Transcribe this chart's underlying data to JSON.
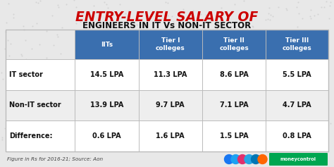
{
  "title_line1": "ENTRY-LEVEL SALARY OF",
  "title_line2": "ENGINEERS IN IT Vs NON-IT SECTOR",
  "title_line1_color": "#cc0000",
  "title_line2_color": "#111111",
  "header_bg_color": "#3a6faf",
  "header_text_color": "#ffffff",
  "col_headers": [
    "IITs",
    "Tier I\ncolleges",
    "Tier II\ncolleges",
    "Tier III\ncolleges"
  ],
  "row_labels": [
    "IT sector",
    "Non-IT sector",
    "Difference:"
  ],
  "table_data": [
    [
      "14.5 LPA",
      "11.3 LPA",
      "8.6 LPA",
      "5.5 LPA"
    ],
    [
      "13.9 LPA",
      "9.7 LPA",
      "7.1 LPA",
      "4.7 LPA"
    ],
    [
      "0.6 LPA",
      "1.6 LPA",
      "1.5 LPA",
      "0.8 LPA"
    ]
  ],
  "row_bg_even": "#ffffff",
  "row_bg_odd": "#eeeeee",
  "border_color": "#bbbbbb",
  "footer_text": "Figure in Rs for 2016-21; Source: Aon",
  "background_color": "#e8e8e8",
  "mc_color": "#00a650",
  "icon_colors": [
    "#1877f2",
    "#1da1f2",
    "#e1306c",
    "#26a5e4",
    "#0077b5",
    "#ff6600"
  ]
}
